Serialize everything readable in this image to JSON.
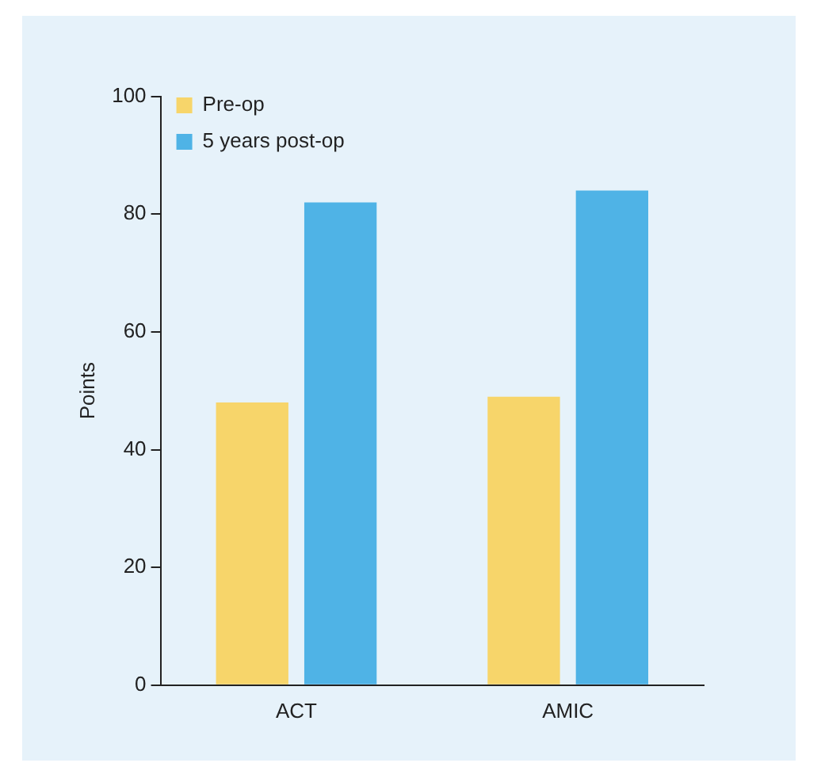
{
  "chart_data": {
    "type": "bar",
    "ylabel": "Points",
    "categories": [
      "ACT",
      "AMIC"
    ],
    "series": [
      {
        "name": "Pre-op",
        "color": "#f7d56a",
        "values": [
          48,
          49
        ]
      },
      {
        "name": "5 years post-op",
        "color": "#4fb3e6",
        "values": [
          82,
          84
        ]
      }
    ],
    "ylim": [
      0,
      100
    ],
    "yticks": [
      0,
      20,
      40,
      60,
      80,
      100
    ],
    "grid": false,
    "legend": "top left"
  }
}
